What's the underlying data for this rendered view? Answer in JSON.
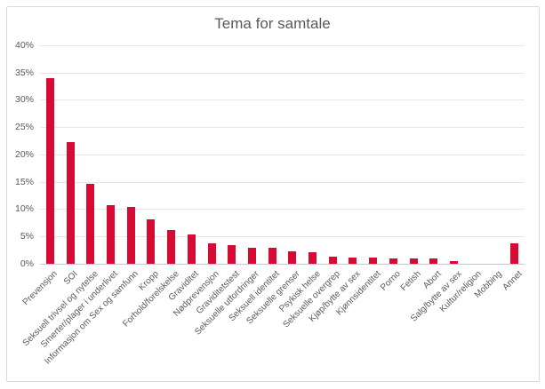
{
  "chart": {
    "title": "Tema for samtale"
  },
  "chart_data": {
    "type": "bar",
    "title": "Tema for samtale",
    "categories": [
      "Prevensjon",
      "SOI",
      "Seksuell trivsel og nytelse",
      "Smerter/plager i underlivet",
      "Informasjon om Sex og samfunn",
      "Kropp",
      "Forhold/forelskelse",
      "Graviditet",
      "Nødprevensjon",
      "Graviditetstest",
      "Seksuelle utfordringer",
      "Seksuell identitet",
      "Seksuelle grenser",
      "Psykisk helse",
      "Seksuelle overgrep",
      "Kjøp/bytte av sex",
      "Kjønnsidentitet",
      "Porno",
      "Fetish",
      "Abort",
      "Salg/bytte av sex",
      "Kultur/religion",
      "Mobbing",
      "Annet"
    ],
    "values": [
      34.0,
      22.2,
      14.7,
      10.7,
      10.4,
      8.2,
      6.1,
      5.3,
      3.8,
      3.4,
      3.0,
      2.9,
      2.2,
      2.1,
      1.3,
      1.2,
      1.1,
      1.0,
      1.0,
      0.9,
      0.5,
      0.0,
      0.0,
      3.8
    ],
    "xlabel": "",
    "ylabel": "",
    "ylim": [
      0,
      40
    ],
    "ytick_step": 5,
    "yticks": [
      "0%",
      "5%",
      "10%",
      "15%",
      "20%",
      "25%",
      "30%",
      "35%",
      "40%"
    ],
    "grid": true,
    "legend": false,
    "bar_color": "#D60A33",
    "text_color": "#595959",
    "gridline_color": "#E7E7E7",
    "axis_line_color": "#C9C9C9",
    "border_color": "#D9D9D9",
    "background_color": "#FFFFFF"
  }
}
